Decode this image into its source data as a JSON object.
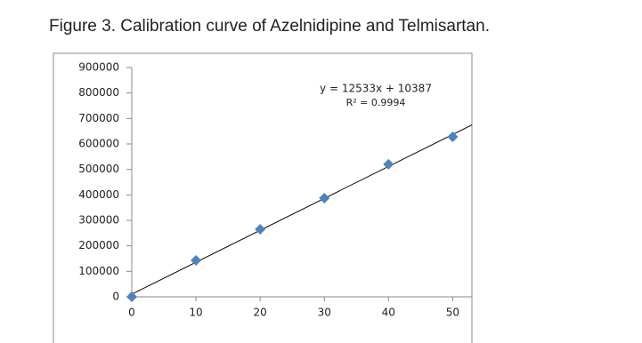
{
  "chart_data": {
    "type": "scatter",
    "title": "Figure 3. Calibration curve of Azelnidipine and Telmisartan.",
    "x": [
      0,
      10,
      20,
      30,
      40,
      50
    ],
    "values": [
      0,
      143000,
      265000,
      387000,
      520000,
      628000
    ],
    "color": "#4f81bd",
    "xlim": [
      0,
      53
    ],
    "xticks": [
      0,
      10,
      20,
      30,
      40,
      50
    ],
    "ylim": [
      0,
      900000
    ],
    "yticks": [
      0,
      100000,
      200000,
      300000,
      400000,
      500000,
      600000,
      700000,
      800000,
      900000
    ],
    "trendline": {
      "slope": 12533,
      "intercept": 10387,
      "color": "#000000"
    },
    "annotations": [
      "y = 12533x + 10387",
      "R² = 0.9994"
    ]
  }
}
